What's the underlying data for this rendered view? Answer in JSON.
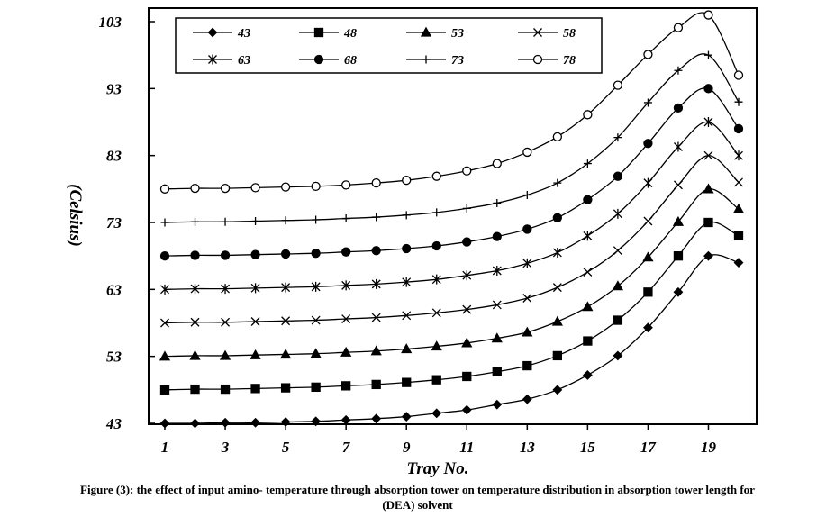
{
  "chart_data": {
    "type": "line",
    "title": "",
    "xlabel": "Tray No.",
    "ylabel": "(Celsius)",
    "xlim": [
      1,
      20
    ],
    "ylim": [
      43,
      103
    ],
    "x_ticks": [
      "1",
      "3",
      "5",
      "7",
      "9",
      "11",
      "13",
      "15",
      "17",
      "19"
    ],
    "y_ticks": [
      "43",
      "53",
      "63",
      "73",
      "83",
      "93",
      "103"
    ],
    "grid": false,
    "legend_position": "top",
    "x": [
      1,
      2,
      3,
      4,
      5,
      6,
      7,
      8,
      9,
      10,
      11,
      12,
      13,
      14,
      15,
      16,
      17,
      18,
      19,
      20
    ],
    "series": [
      {
        "name": "43",
        "marker": "diamond-filled",
        "values": [
          43.0,
          43.0,
          43.1,
          43.1,
          43.2,
          43.3,
          43.5,
          43.7,
          44.0,
          44.5,
          45.0,
          45.8,
          46.6,
          48.0,
          50.2,
          53.1,
          57.3,
          62.6,
          68.0,
          67.0
        ]
      },
      {
        "name": "48",
        "marker": "square-filled",
        "values": [
          48.0,
          48.1,
          48.1,
          48.2,
          48.3,
          48.4,
          48.6,
          48.8,
          49.1,
          49.5,
          50.0,
          50.7,
          51.6,
          53.1,
          55.3,
          58.4,
          62.6,
          68.0,
          73.0,
          71.0
        ]
      },
      {
        "name": "53",
        "marker": "triangle-filled",
        "values": [
          53.0,
          53.1,
          53.1,
          53.2,
          53.3,
          53.4,
          53.6,
          53.8,
          54.1,
          54.5,
          55.0,
          55.7,
          56.6,
          58.2,
          60.4,
          63.5,
          67.8,
          73.1,
          78.0,
          75.0
        ]
      },
      {
        "name": "58",
        "marker": "x-cross",
        "values": [
          58.0,
          58.1,
          58.1,
          58.2,
          58.3,
          58.4,
          58.6,
          58.8,
          59.1,
          59.5,
          60.0,
          60.7,
          61.7,
          63.3,
          65.6,
          68.8,
          73.2,
          78.6,
          83.0,
          79.0
        ]
      },
      {
        "name": "63",
        "marker": "star",
        "values": [
          63.0,
          63.1,
          63.1,
          63.2,
          63.3,
          63.4,
          63.6,
          63.8,
          64.1,
          64.5,
          65.1,
          65.8,
          66.9,
          68.5,
          71.0,
          74.3,
          78.9,
          84.3,
          88.0,
          83.0
        ]
      },
      {
        "name": "68",
        "marker": "circle-filled",
        "values": [
          68.0,
          68.1,
          68.1,
          68.2,
          68.3,
          68.4,
          68.6,
          68.8,
          69.1,
          69.5,
          70.1,
          70.9,
          72.0,
          73.7,
          76.4,
          79.9,
          84.8,
          90.1,
          93.0,
          87.0
        ]
      },
      {
        "name": "73",
        "marker": "plus",
        "values": [
          73.0,
          73.1,
          73.1,
          73.2,
          73.3,
          73.4,
          73.6,
          73.8,
          74.1,
          74.5,
          75.1,
          75.9,
          77.1,
          78.9,
          81.8,
          85.7,
          90.9,
          95.7,
          98.0,
          91.0
        ]
      },
      {
        "name": "78",
        "marker": "circle-open",
        "values": [
          78.0,
          78.1,
          78.1,
          78.2,
          78.3,
          78.4,
          78.6,
          78.9,
          79.3,
          79.9,
          80.7,
          81.8,
          83.5,
          85.8,
          89.1,
          93.5,
          98.1,
          102.1,
          104.0,
          95.0
        ]
      }
    ]
  },
  "caption": {
    "line1": "Figure (3): the effect of input amino- temperature through absorption tower on temperature distribution in absorption tower length for",
    "line2": "(DEA) solvent"
  }
}
